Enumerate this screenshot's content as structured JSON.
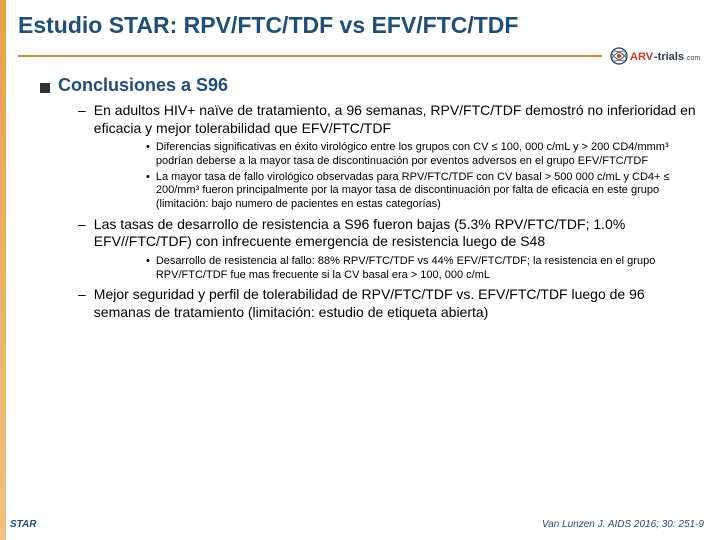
{
  "colors": {
    "title": "#1f4e79",
    "accent": "#c98b3a",
    "body": "#000000",
    "logo_arv": "#c0392b",
    "logo_trials": "#2c3e50"
  },
  "font_sizes": {
    "title": 23,
    "h2": 18,
    "level1": 14,
    "level2": 11,
    "footer": 10
  },
  "title": "Estudio STAR: RPV/FTC/TDF vs EFV/FTC/TDF",
  "logo": {
    "arv": "ARV",
    "trials": "-trials",
    "dotcom": ".com"
  },
  "heading": "Conclusiones a S96",
  "bullets": [
    {
      "text": "En adultos HIV+ naïve de tratamiento, a 96 semanas, RPV/FTC/TDF demostró no inferioridad en eficacia y mejor tolerabilidad que EFV/FTC/TDF",
      "sub": [
        "Diferencias significativas en éxito virológico entre los grupos con CV ≤ 100, 000 c/mL y > 200 CD4/mmm³ podrían deberse a la mayor tasa de discontinuación por eventos adversos en el grupo  EFV/FTC/TDF",
        "La mayor tasa de fallo virológico observadas para  RPV/FTC/TDF con CV  basal > 500 000 c/mL y CD4+ ≤ 200/mm³  fueron principalmente por la mayor tasa de discontinuación por falta de eficacia en este grupo (limitación: bajo numero de pacientes en estas categorías)"
      ]
    },
    {
      "text": "Las tasas de desarrollo de resistencia a S96 fueron bajas (5.3% RPV/FTC/TDF; 1.0% EFV//FTC/TDF) con infrecuente emergencia de resistencia luego de S48",
      "sub": [
        "Desarrollo de resistencia al fallo: 88% RPV/FTC/TDF vs 44% EFV/FTC/TDF; la resistencia en el grupo RPV/FTC/TDF fue mas frecuente si la CV basal era  > 100, 000 c/mL"
      ]
    },
    {
      "text": "Mejor seguridad y perfil de tolerabilidad de RPV/FTC/TDF vs. EFV/FTC/TDF luego de 96 semanas de tratamiento (limitación: estudio de etiqueta abierta)",
      "sub": []
    }
  ],
  "footer": {
    "left": "STAR",
    "right": "Van Lunzen J. AIDS 2016; 30: 251-9"
  }
}
